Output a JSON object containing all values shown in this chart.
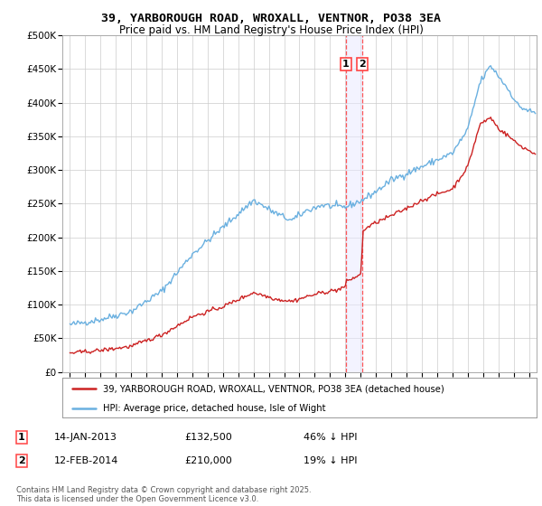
{
  "title_line1": "39, YARBOROUGH ROAD, WROXALL, VENTNOR, PO38 3EA",
  "title_line2": "Price paid vs. HM Land Registry's House Price Index (HPI)",
  "legend_label1": "39, YARBOROUGH ROAD, WROXALL, VENTNOR, PO38 3EA (detached house)",
  "legend_label2": "HPI: Average price, detached house, Isle of Wight",
  "annotation1_num": "1",
  "annotation1_date": "14-JAN-2013",
  "annotation1_price": "£132,500",
  "annotation1_note": "46% ↓ HPI",
  "annotation2_num": "2",
  "annotation2_date": "12-FEB-2014",
  "annotation2_price": "£210,000",
  "annotation2_note": "19% ↓ HPI",
  "footer": "Contains HM Land Registry data © Crown copyright and database right 2025.\nThis data is licensed under the Open Government Licence v3.0.",
  "hpi_color": "#6ab0e0",
  "price_color": "#cc2222",
  "vline_color": "#ff4444",
  "vline_date1": 2013.04,
  "vline_date2": 2014.12,
  "ylim_min": 0,
  "ylim_max": 500000,
  "xlim_min": 1994.5,
  "xlim_max": 2025.5,
  "background_color": "#ffffff",
  "grid_color": "#cccccc"
}
